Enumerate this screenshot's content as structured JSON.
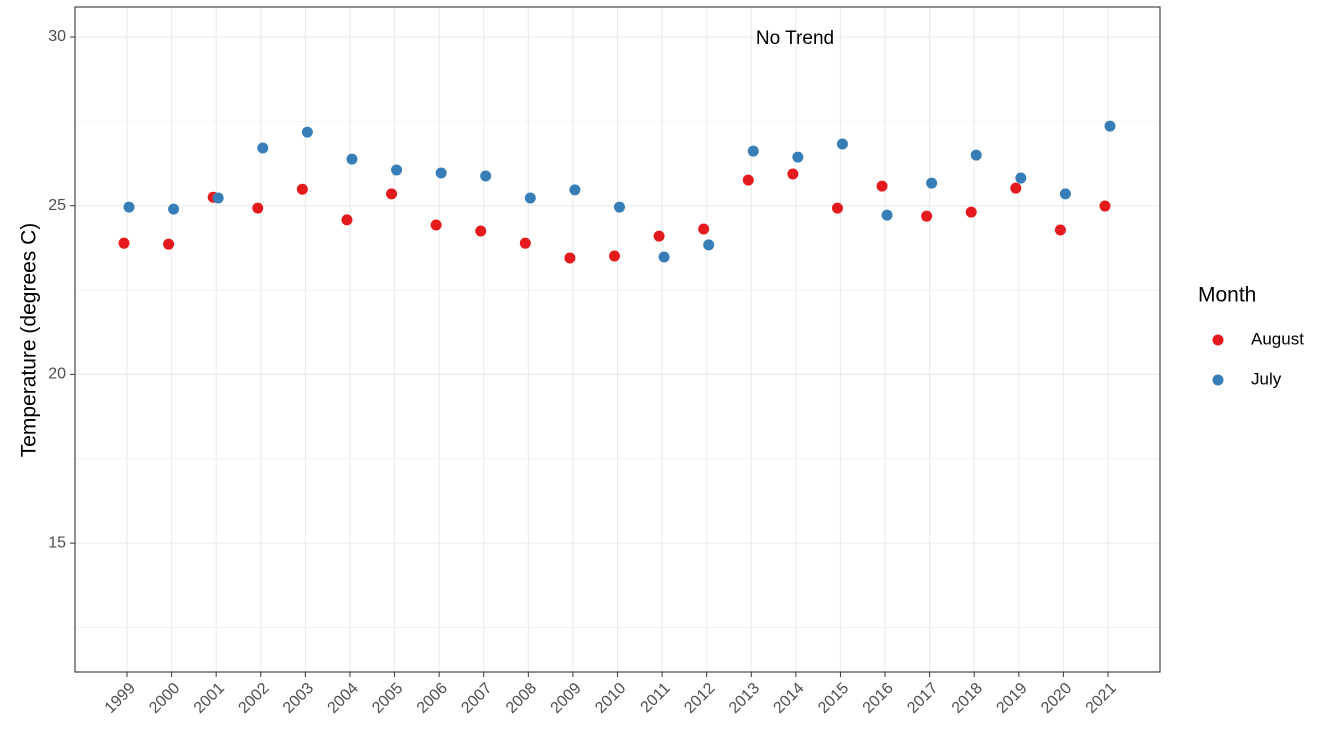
{
  "chart_data": {
    "type": "scatter",
    "y_label": "Temperature (degrees C)",
    "annotations": [
      {
        "text": "No Trend"
      }
    ],
    "legend_title": "Month",
    "legend_position": "right",
    "grid": true,
    "categories": [
      "1999",
      "2000",
      "2001",
      "2002",
      "2003",
      "2004",
      "2005",
      "2006",
      "2007",
      "2008",
      "2009",
      "2010",
      "2011",
      "2012",
      "2013",
      "2014",
      "2015",
      "2016",
      "2017",
      "2018",
      "2019",
      "2020",
      "2021"
    ],
    "series": [
      {
        "name": "August",
        "color": "#e41a1c",
        "values": [
          23.89,
          23.86,
          25.25,
          24.93,
          25.49,
          24.58,
          25.35,
          24.43,
          24.25,
          23.89,
          23.45,
          23.51,
          24.1,
          24.31,
          25.76,
          25.94,
          24.93,
          25.58,
          24.69,
          24.81,
          25.52,
          24.28,
          24.99
        ]
      },
      {
        "name": "July",
        "color": "#377eb8",
        "values": [
          24.96,
          24.9,
          25.23,
          26.71,
          27.18,
          26.38,
          26.06,
          25.97,
          25.88,
          25.23,
          25.47,
          24.96,
          23.48,
          23.84,
          26.62,
          26.44,
          26.83,
          24.72,
          25.67,
          26.5,
          25.82,
          25.35,
          27.36
        ]
      }
    ],
    "ylim": [
      11.18,
      30.89
    ],
    "yticks": [
      15,
      20,
      25,
      30
    ]
  }
}
